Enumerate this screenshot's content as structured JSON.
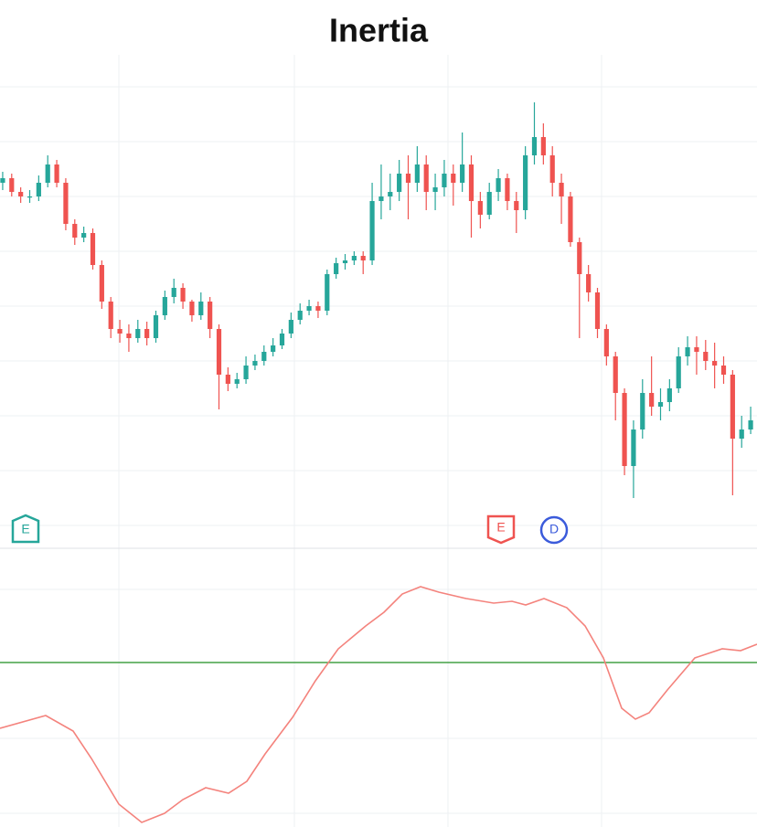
{
  "chart_data": [
    {
      "type": "candlestick",
      "title": "Inertia",
      "categories": [
        null,
        null,
        null,
        null,
        null,
        null,
        null,
        null,
        null,
        null,
        null,
        null,
        null,
        null,
        null,
        null,
        null,
        null,
        null,
        null,
        null,
        null,
        null,
        null,
        null,
        null,
        null,
        null,
        null,
        null,
        null,
        null,
        null,
        null,
        null,
        null,
        null,
        null,
        null,
        null,
        null,
        null,
        null,
        null,
        null,
        null,
        null,
        null,
        null,
        null,
        null,
        null,
        null,
        null,
        null,
        null,
        null,
        null,
        null,
        null,
        null,
        null,
        null,
        null,
        null,
        null,
        null,
        null,
        null,
        null,
        null,
        null,
        null,
        null,
        null,
        null,
        null,
        null,
        null,
        null,
        null,
        null,
        null,
        null
      ],
      "open": [
        400,
        405,
        390,
        385,
        385,
        400,
        420,
        400,
        355,
        340,
        345,
        310,
        270,
        240,
        235,
        230,
        240,
        230,
        255,
        275,
        285,
        270,
        255,
        270,
        240,
        190,
        180,
        185,
        200,
        205,
        215,
        222,
        235,
        250,
        260,
        265,
        260,
        300,
        312,
        315,
        320,
        315,
        380,
        385,
        390,
        410,
        400,
        420,
        390,
        395,
        410,
        400,
        420,
        380,
        365,
        390,
        405,
        380,
        370,
        430,
        450,
        430,
        400,
        385,
        335,
        300,
        280,
        240,
        210,
        170,
        90,
        130,
        170,
        155,
        160,
        175,
        210,
        220,
        215,
        205,
        200,
        190,
        120,
        130
      ],
      "high": [
        412,
        410,
        395,
        392,
        408,
        430,
        425,
        405,
        360,
        352,
        350,
        315,
        275,
        250,
        245,
        250,
        248,
        260,
        282,
        295,
        290,
        272,
        280,
        275,
        245,
        198,
        192,
        210,
        212,
        222,
        230,
        240,
        258,
        268,
        272,
        270,
        305,
        318,
        322,
        325,
        325,
        400,
        420,
        410,
        425,
        430,
        440,
        430,
        410,
        425,
        420,
        455,
        430,
        390,
        400,
        415,
        410,
        390,
        440,
        488,
        465,
        440,
        410,
        390,
        340,
        310,
        285,
        245,
        215,
        175,
        140,
        185,
        210,
        175,
        185,
        220,
        232,
        232,
        228,
        225,
        210,
        195,
        145,
        155
      ],
      "low": [
        392,
        385,
        378,
        378,
        380,
        395,
        395,
        348,
        332,
        335,
        305,
        262,
        230,
        225,
        215,
        225,
        222,
        225,
        250,
        268,
        262,
        248,
        250,
        230,
        152,
        172,
        175,
        180,
        195,
        200,
        210,
        218,
        230,
        245,
        255,
        252,
        255,
        295,
        305,
        310,
        300,
        310,
        360,
        370,
        380,
        360,
        390,
        370,
        370,
        385,
        375,
        390,
        340,
        350,
        360,
        380,
        370,
        345,
        360,
        420,
        420,
        385,
        355,
        330,
        230,
        270,
        230,
        200,
        140,
        80,
        55,
        120,
        145,
        140,
        150,
        170,
        200,
        190,
        195,
        175,
        180,
        58,
        110,
        125
      ],
      "close": [
        405,
        390,
        385,
        385,
        400,
        420,
        400,
        355,
        340,
        345,
        310,
        270,
        240,
        235,
        230,
        240,
        230,
        255,
        275,
        285,
        270,
        255,
        270,
        240,
        190,
        180,
        185,
        200,
        205,
        215,
        222,
        235,
        250,
        260,
        265,
        260,
        300,
        312,
        315,
        320,
        315,
        380,
        385,
        390,
        410,
        400,
        420,
        390,
        395,
        410,
        400,
        420,
        380,
        365,
        390,
        405,
        380,
        370,
        430,
        450,
        430,
        400,
        385,
        335,
        300,
        280,
        240,
        210,
        170,
        90,
        130,
        170,
        155,
        160,
        175,
        210,
        220,
        215,
        205,
        200,
        190,
        120,
        130,
        140
      ],
      "up_color": "#26a69a",
      "down_color": "#ef5350",
      "ylim": [
        0,
        540
      ],
      "annotations": [
        "E",
        "E",
        "D"
      ]
    },
    {
      "type": "line",
      "x": [
        0,
        50,
        80,
        100,
        130,
        155,
        180,
        200,
        225,
        250,
        270,
        290,
        320,
        345,
        370,
        400,
        420,
        440,
        460,
        480,
        510,
        540,
        560,
        575,
        595,
        620,
        640,
        660,
        680,
        695,
        710,
        730,
        760,
        790,
        810,
        828
      ],
      "series": [
        {
          "color": "#f4837d",
          "values": [
            108,
            122,
            105,
            75,
            25,
            5,
            15,
            30,
            43,
            37,
            50,
            80,
            120,
            160,
            195,
            220,
            235,
            255,
            263,
            257,
            250,
            245,
            247,
            243,
            250,
            240,
            220,
            185,
            130,
            118,
            125,
            150,
            185,
            195,
            193,
            200
          ]
        }
      ],
      "level": 180,
      "level_color": "#43a047",
      "xlim": [
        0,
        828
      ],
      "ylim": [
        0,
        305
      ]
    }
  ]
}
